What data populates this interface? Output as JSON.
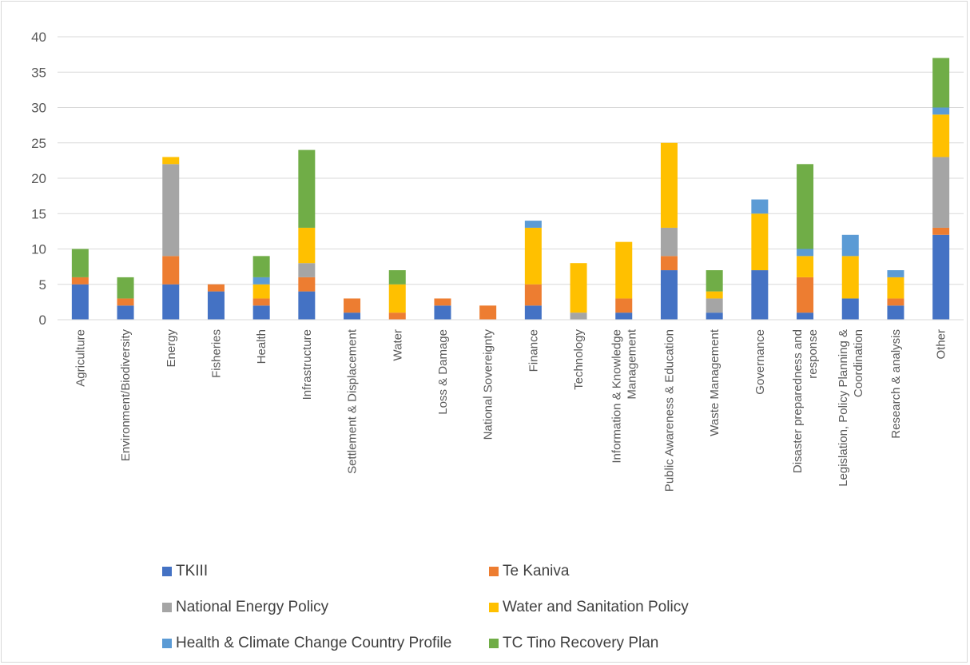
{
  "chart_data": {
    "type": "bar",
    "stacked": true,
    "categories": [
      "Agriculture",
      "Environment/Biodiversity",
      "Energy",
      "Fisheries",
      "Health",
      "Infrastructure",
      "Settlement & Displacement",
      "Water",
      "Loss & Damage",
      "National Sovereignty",
      "Finance",
      "Technology",
      "Information & Knowledge\nManagement",
      "Public Awareness & Education",
      "Waste Management",
      "Governance",
      "Disaster preparedness and\nresponse",
      "Legislation, Policy Planning &\nCoordination",
      "Research & analysis",
      "Other"
    ],
    "series": [
      {
        "name": "TKIII",
        "color": "#4472C4",
        "values": [
          5,
          2,
          5,
          4,
          2,
          4,
          1,
          0,
          2,
          0,
          2,
          0,
          1,
          7,
          1,
          7,
          1,
          3,
          2,
          12
        ]
      },
      {
        "name": "Te Kaniva",
        "color": "#ED7D31",
        "values": [
          1,
          1,
          4,
          1,
          1,
          2,
          2,
          1,
          1,
          2,
          3,
          0,
          2,
          2,
          0,
          0,
          5,
          0,
          1,
          1
        ]
      },
      {
        "name": "National Energy Policy",
        "color": "#A5A5A5",
        "values": [
          0,
          0,
          13,
          0,
          0,
          2,
          0,
          0,
          0,
          0,
          0,
          1,
          0,
          4,
          2,
          0,
          0,
          0,
          0,
          10
        ]
      },
      {
        "name": "Water and Sanitation Policy",
        "color": "#FFC000",
        "values": [
          0,
          0,
          1,
          0,
          2,
          5,
          0,
          4,
          0,
          0,
          8,
          7,
          8,
          12,
          1,
          8,
          3,
          6,
          3,
          6
        ]
      },
      {
        "name": "Health & Climate Change Country Profile",
        "color": "#5B9BD5",
        "values": [
          0,
          0,
          0,
          0,
          1,
          0,
          0,
          0,
          0,
          0,
          1,
          0,
          0,
          0,
          0,
          2,
          1,
          3,
          1,
          1
        ]
      },
      {
        "name": "TC Tino Recovery Plan",
        "color": "#70AD47",
        "values": [
          4,
          3,
          0,
          0,
          3,
          11,
          0,
          2,
          0,
          0,
          0,
          0,
          0,
          0,
          3,
          0,
          12,
          0,
          0,
          7
        ]
      }
    ],
    "ylim": [
      0,
      40
    ],
    "yticks": [
      "0",
      "5",
      "10",
      "15",
      "20",
      "25",
      "30",
      "35",
      "40"
    ],
    "grid": true,
    "legend_position": "bottom"
  }
}
